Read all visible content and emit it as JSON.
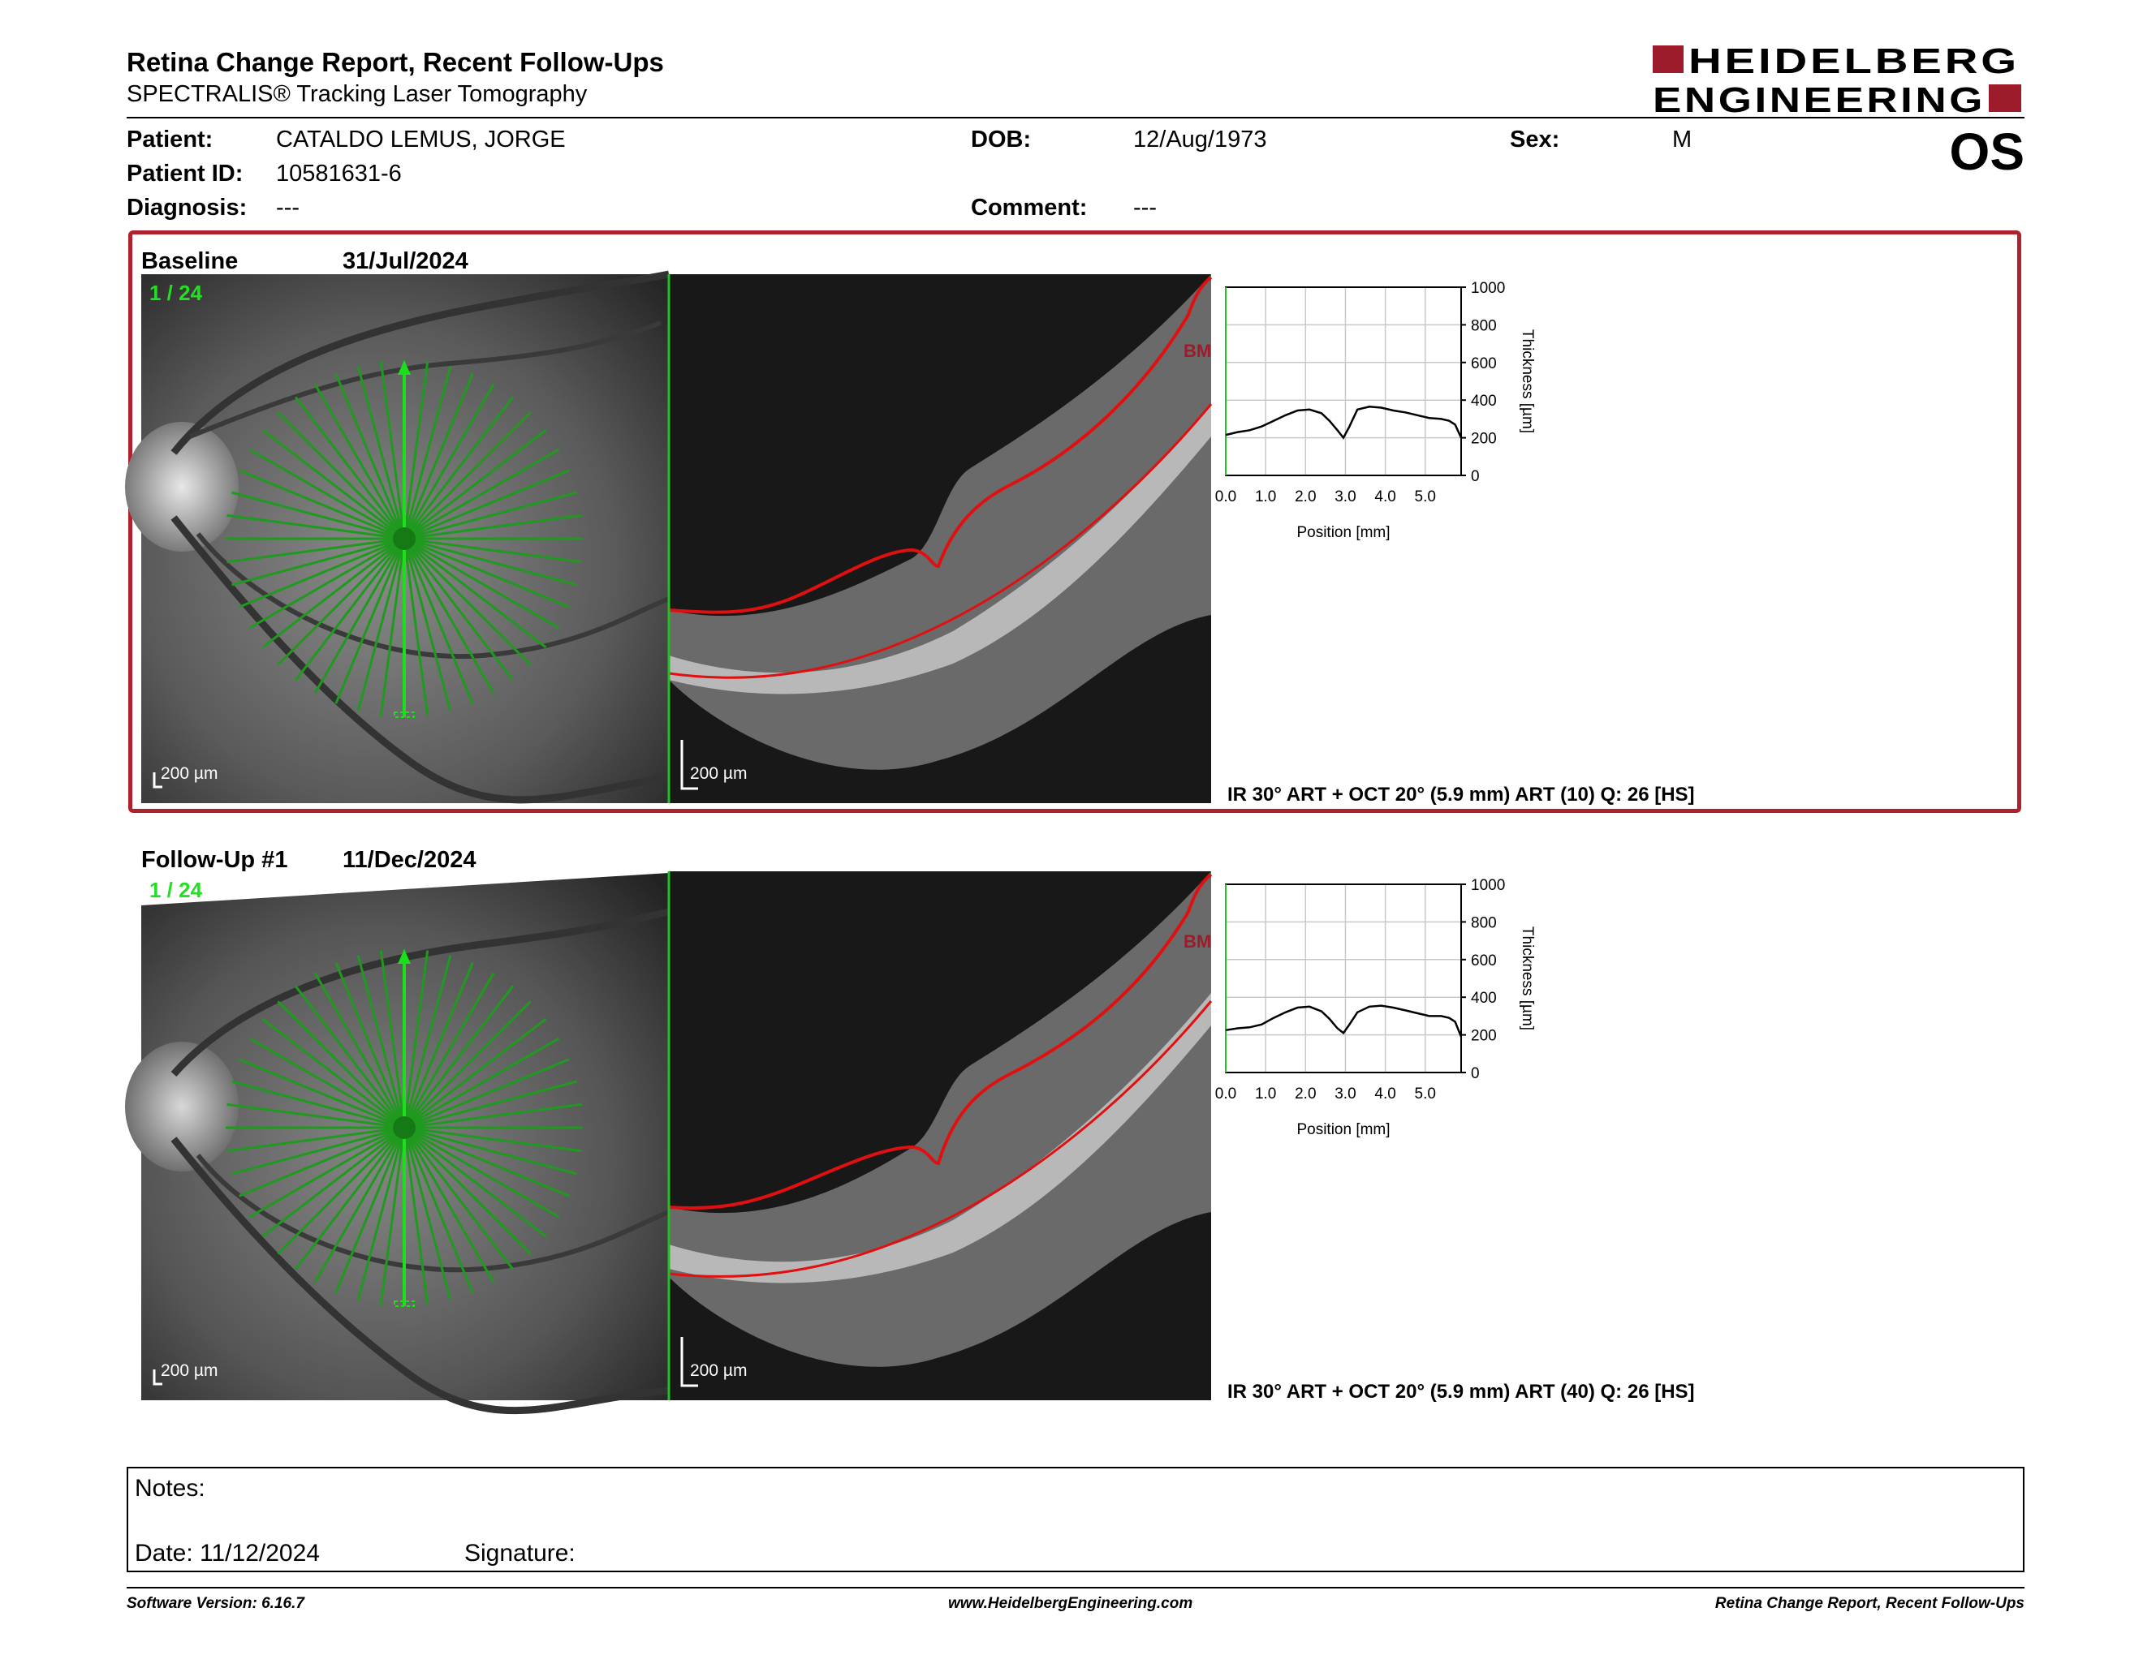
{
  "header": {
    "title": "Retina Change Report, Recent Follow-Ups",
    "subtitle": "SPECTRALIS® Tracking Laser Tomography",
    "logo_line1": "HEIDELBERG",
    "logo_line2": "ENGINEERING",
    "logo_color": "#9c1c2c"
  },
  "patient": {
    "patient_label": "Patient:",
    "patient_name": "CATALDO LEMUS, JORGE",
    "id_label": "Patient ID:",
    "id": "10581631-6",
    "diagnosis_label": "Diagnosis:",
    "diagnosis": "---",
    "dob_label": "DOB:",
    "dob": "12/Aug/1973",
    "comment_label": "Comment:",
    "comment": "---",
    "sex_label": "Sex:",
    "sex": "M",
    "eye": "OS"
  },
  "exams": [
    {
      "label": "Baseline",
      "date": "31/Jul/2024",
      "scan_counter": "1 / 24",
      "fundus_scale": "200 µm",
      "oct_scale": "200 µm",
      "bm_label": "BM",
      "scan_info": "IR 30° ART + OCT 20° (5.9 mm) ART (10) Q: 26 [HS]",
      "highlighted": true
    },
    {
      "label": "Follow-Up #1",
      "date": "11/Dec/2024",
      "scan_counter": "1 / 24",
      "fundus_scale": "200 µm",
      "oct_scale": "200 µm",
      "bm_label": "BM",
      "scan_info": "IR 30° ART + OCT 20° (5.9 mm) ART (40) Q: 26 [HS]",
      "highlighted": false
    }
  ],
  "chart_data": [
    {
      "type": "line",
      "xlabel": "Position [mm]",
      "ylabel": "Thickness [µm]",
      "xlim": [
        0,
        5.9
      ],
      "ylim": [
        0,
        1000
      ],
      "xticks": [
        "0.0",
        "1.0",
        "2.0",
        "3.0",
        "4.0",
        "5.0"
      ],
      "yticks": [
        "0",
        "200",
        "400",
        "600",
        "800",
        "1000"
      ],
      "grid": true,
      "series": [
        {
          "x": [
            0.0,
            0.3,
            0.6,
            0.9,
            1.2,
            1.5,
            1.8,
            2.1,
            2.4,
            2.6,
            2.8,
            2.95,
            3.1,
            3.3,
            3.6,
            3.9,
            4.2,
            4.5,
            4.8,
            5.1,
            5.4,
            5.6,
            5.75,
            5.9
          ],
          "y": [
            215,
            230,
            240,
            260,
            290,
            320,
            345,
            350,
            330,
            290,
            240,
            200,
            260,
            350,
            365,
            360,
            345,
            335,
            320,
            305,
            300,
            290,
            270,
            200
          ]
        }
      ]
    },
    {
      "type": "line",
      "xlabel": "Position [mm]",
      "ylabel": "Thickness [µm]",
      "xlim": [
        0,
        5.9
      ],
      "ylim": [
        0,
        1000
      ],
      "xticks": [
        "0.0",
        "1.0",
        "2.0",
        "3.0",
        "4.0",
        "5.0"
      ],
      "yticks": [
        "0",
        "200",
        "400",
        "600",
        "800",
        "1000"
      ],
      "grid": true,
      "series": [
        {
          "x": [
            0.0,
            0.3,
            0.6,
            0.9,
            1.2,
            1.5,
            1.8,
            2.1,
            2.4,
            2.6,
            2.8,
            2.95,
            3.1,
            3.3,
            3.6,
            3.9,
            4.2,
            4.5,
            4.8,
            5.1,
            5.4,
            5.6,
            5.75,
            5.9
          ],
          "y": [
            225,
            235,
            240,
            255,
            290,
            320,
            345,
            350,
            325,
            285,
            235,
            210,
            255,
            320,
            350,
            355,
            345,
            330,
            315,
            300,
            300,
            290,
            270,
            190
          ]
        }
      ]
    }
  ],
  "notes": {
    "notes_label": "Notes:",
    "date_label": "Date: 11/12/2024",
    "signature_label": "Signature:"
  },
  "footer": {
    "software": "Software Version: 6.16.7",
    "website": "www.HeidelbergEngineering.com",
    "report_name": "Retina Change Report, Recent Follow-Ups"
  }
}
